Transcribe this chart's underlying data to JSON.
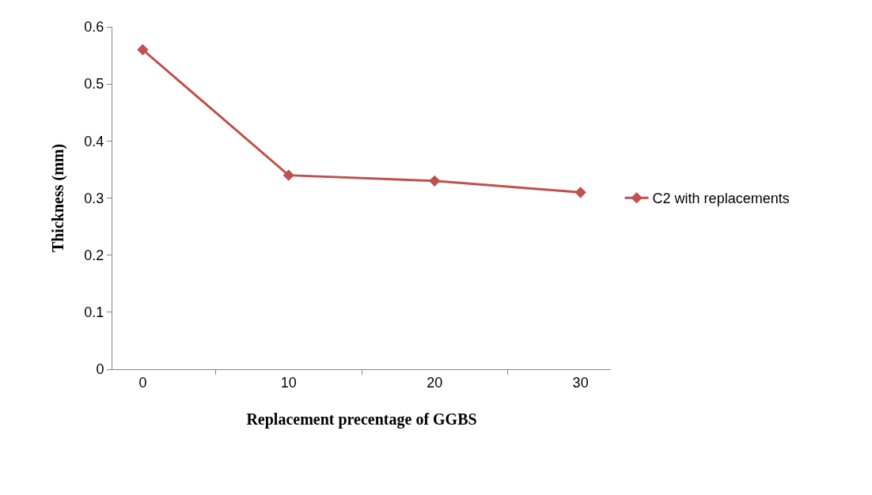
{
  "chart_data": {
    "type": "line",
    "xlabel": "Replacement precentage of GGBS",
    "ylabel": "Thickness (mm)",
    "categories": [
      "0",
      "10",
      "20",
      "30"
    ],
    "series": [
      {
        "name": "C2 with replacements",
        "color": "#c0504d",
        "values": [
          0.56,
          0.34,
          0.33,
          0.31
        ]
      }
    ],
    "ylim": [
      0,
      0.6
    ],
    "yticks": [
      0,
      0.1,
      0.2,
      0.3,
      0.4,
      0.5,
      0.6
    ],
    "grid": false,
    "legend": "right",
    "marker": "diamond",
    "line_style": "solid"
  }
}
